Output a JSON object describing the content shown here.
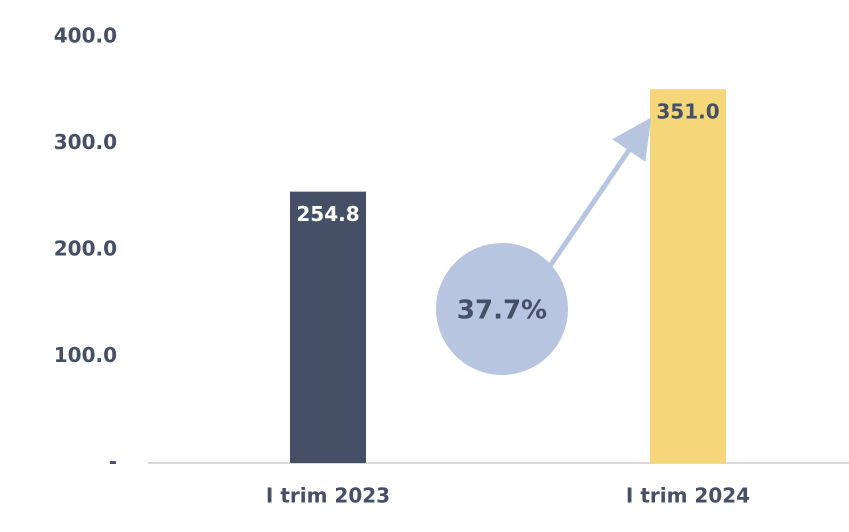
{
  "chart_data": {
    "type": "bar",
    "categories": [
      "I trim 2023",
      "I trim 2024"
    ],
    "values": [
      254.8,
      351.0
    ],
    "value_labels": [
      "254.8",
      "351.0"
    ],
    "colors": [
      "#454f66",
      "#f5d77a"
    ],
    "ylim": [
      0,
      400
    ],
    "yticks": [
      {
        "value": 0,
        "label": "-"
      },
      {
        "value": 100,
        "label": "100.0"
      },
      {
        "value": 200,
        "label": "200.0"
      },
      {
        "value": 300,
        "label": "300.0"
      },
      {
        "value": 400,
        "label": "400.0"
      }
    ],
    "annotation": "37.7%"
  }
}
